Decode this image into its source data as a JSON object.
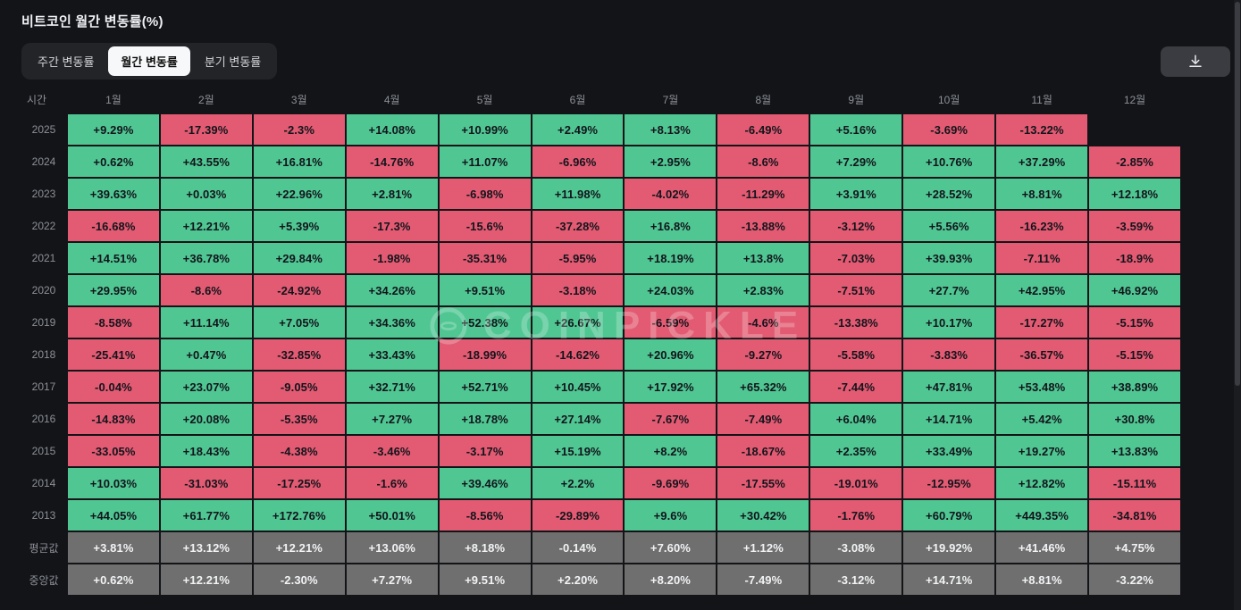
{
  "page": {
    "title": "비트코인 월간 변동률(%)"
  },
  "tabs": [
    {
      "id": "weekly",
      "label": "주간 변동률",
      "active": false
    },
    {
      "id": "monthly",
      "label": "월간 변동률",
      "active": true
    },
    {
      "id": "quarterly",
      "label": "분기 변동률",
      "active": false
    }
  ],
  "icons": {
    "download": "download-icon",
    "logo": "coinpickle-logo-icon"
  },
  "watermark": {
    "text": "COINPICKLE"
  },
  "colors": {
    "background": "#131418",
    "panel": "#232428",
    "tab_active_bg": "#f7f8f9",
    "tab_active_text": "#111111",
    "tab_text": "#d0d3d8",
    "header_text": "#8b9097",
    "positive": "#50c692",
    "negative": "#e25b72",
    "summary": "#6f6f6f",
    "cell_text": "#12141c",
    "summary_text": "#f2f3f5",
    "title_text": "#eef0f3",
    "download_bg": "#3a3c41",
    "watermark": "rgba(255,255,255,0.24)"
  },
  "chart_data": {
    "type": "heatmap",
    "title": "비트코인 월간 변동률(%)",
    "unit": "%",
    "legend": {
      "positive_color": "#50c692",
      "negative_color": "#e25b72",
      "summary_color": "#6f6f6f"
    },
    "columns": [
      "시간",
      "1월",
      "2월",
      "3월",
      "4월",
      "5월",
      "6월",
      "7월",
      "8월",
      "9월",
      "10월",
      "11월",
      "12월"
    ],
    "rows": [
      {
        "label": "2025",
        "type": "year",
        "values": [
          "+9.29%",
          "-17.39%",
          "-2.3%",
          "+14.08%",
          "+10.99%",
          "+2.49%",
          "+8.13%",
          "-6.49%",
          "+5.16%",
          "-3.69%",
          "-13.22%",
          ""
        ]
      },
      {
        "label": "2024",
        "type": "year",
        "values": [
          "+0.62%",
          "+43.55%",
          "+16.81%",
          "-14.76%",
          "+11.07%",
          "-6.96%",
          "+2.95%",
          "-8.6%",
          "+7.29%",
          "+10.76%",
          "+37.29%",
          "-2.85%"
        ]
      },
      {
        "label": "2023",
        "type": "year",
        "values": [
          "+39.63%",
          "+0.03%",
          "+22.96%",
          "+2.81%",
          "-6.98%",
          "+11.98%",
          "-4.02%",
          "-11.29%",
          "+3.91%",
          "+28.52%",
          "+8.81%",
          "+12.18%"
        ]
      },
      {
        "label": "2022",
        "type": "year",
        "values": [
          "-16.68%",
          "+12.21%",
          "+5.39%",
          "-17.3%",
          "-15.6%",
          "-37.28%",
          "+16.8%",
          "-13.88%",
          "-3.12%",
          "+5.56%",
          "-16.23%",
          "-3.59%"
        ]
      },
      {
        "label": "2021",
        "type": "year",
        "values": [
          "+14.51%",
          "+36.78%",
          "+29.84%",
          "-1.98%",
          "-35.31%",
          "-5.95%",
          "+18.19%",
          "+13.8%",
          "-7.03%",
          "+39.93%",
          "-7.11%",
          "-18.9%"
        ]
      },
      {
        "label": "2020",
        "type": "year",
        "values": [
          "+29.95%",
          "-8.6%",
          "-24.92%",
          "+34.26%",
          "+9.51%",
          "-3.18%",
          "+24.03%",
          "+2.83%",
          "-7.51%",
          "+27.7%",
          "+42.95%",
          "+46.92%"
        ]
      },
      {
        "label": "2019",
        "type": "year",
        "values": [
          "-8.58%",
          "+11.14%",
          "+7.05%",
          "+34.36%",
          "+52.38%",
          "+26.67%",
          "-6.59%",
          "-4.6%",
          "-13.38%",
          "+10.17%",
          "-17.27%",
          "-5.15%"
        ]
      },
      {
        "label": "2018",
        "type": "year",
        "values": [
          "-25.41%",
          "+0.47%",
          "-32.85%",
          "+33.43%",
          "-18.99%",
          "-14.62%",
          "+20.96%",
          "-9.27%",
          "-5.58%",
          "-3.83%",
          "-36.57%",
          "-5.15%"
        ]
      },
      {
        "label": "2017",
        "type": "year",
        "values": [
          "-0.04%",
          "+23.07%",
          "-9.05%",
          "+32.71%",
          "+52.71%",
          "+10.45%",
          "+17.92%",
          "+65.32%",
          "-7.44%",
          "+47.81%",
          "+53.48%",
          "+38.89%"
        ]
      },
      {
        "label": "2016",
        "type": "year",
        "values": [
          "-14.83%",
          "+20.08%",
          "-5.35%",
          "+7.27%",
          "+18.78%",
          "+27.14%",
          "-7.67%",
          "-7.49%",
          "+6.04%",
          "+14.71%",
          "+5.42%",
          "+30.8%"
        ]
      },
      {
        "label": "2015",
        "type": "year",
        "values": [
          "-33.05%",
          "+18.43%",
          "-4.38%",
          "-3.46%",
          "-3.17%",
          "+15.19%",
          "+8.2%",
          "-18.67%",
          "+2.35%",
          "+33.49%",
          "+19.27%",
          "+13.83%"
        ]
      },
      {
        "label": "2014",
        "type": "year",
        "values": [
          "+10.03%",
          "-31.03%",
          "-17.25%",
          "-1.6%",
          "+39.46%",
          "+2.2%",
          "-9.69%",
          "-17.55%",
          "-19.01%",
          "-12.95%",
          "+12.82%",
          "-15.11%"
        ]
      },
      {
        "label": "2013",
        "type": "year",
        "values": [
          "+44.05%",
          "+61.77%",
          "+172.76%",
          "+50.01%",
          "-8.56%",
          "-29.89%",
          "+9.6%",
          "+30.42%",
          "-1.76%",
          "+60.79%",
          "+449.35%",
          "-34.81%"
        ]
      },
      {
        "label": "평균값",
        "type": "summary",
        "values": [
          "+3.81%",
          "+13.12%",
          "+12.21%",
          "+13.06%",
          "+8.18%",
          "-0.14%",
          "+7.60%",
          "+1.12%",
          "-3.08%",
          "+19.92%",
          "+41.46%",
          "+4.75%"
        ]
      },
      {
        "label": "중앙값",
        "type": "summary",
        "values": [
          "+0.62%",
          "+12.21%",
          "-2.30%",
          "+7.27%",
          "+9.51%",
          "+2.20%",
          "+8.20%",
          "-7.49%",
          "-3.12%",
          "+14.71%",
          "+8.81%",
          "-3.22%"
        ]
      }
    ]
  }
}
